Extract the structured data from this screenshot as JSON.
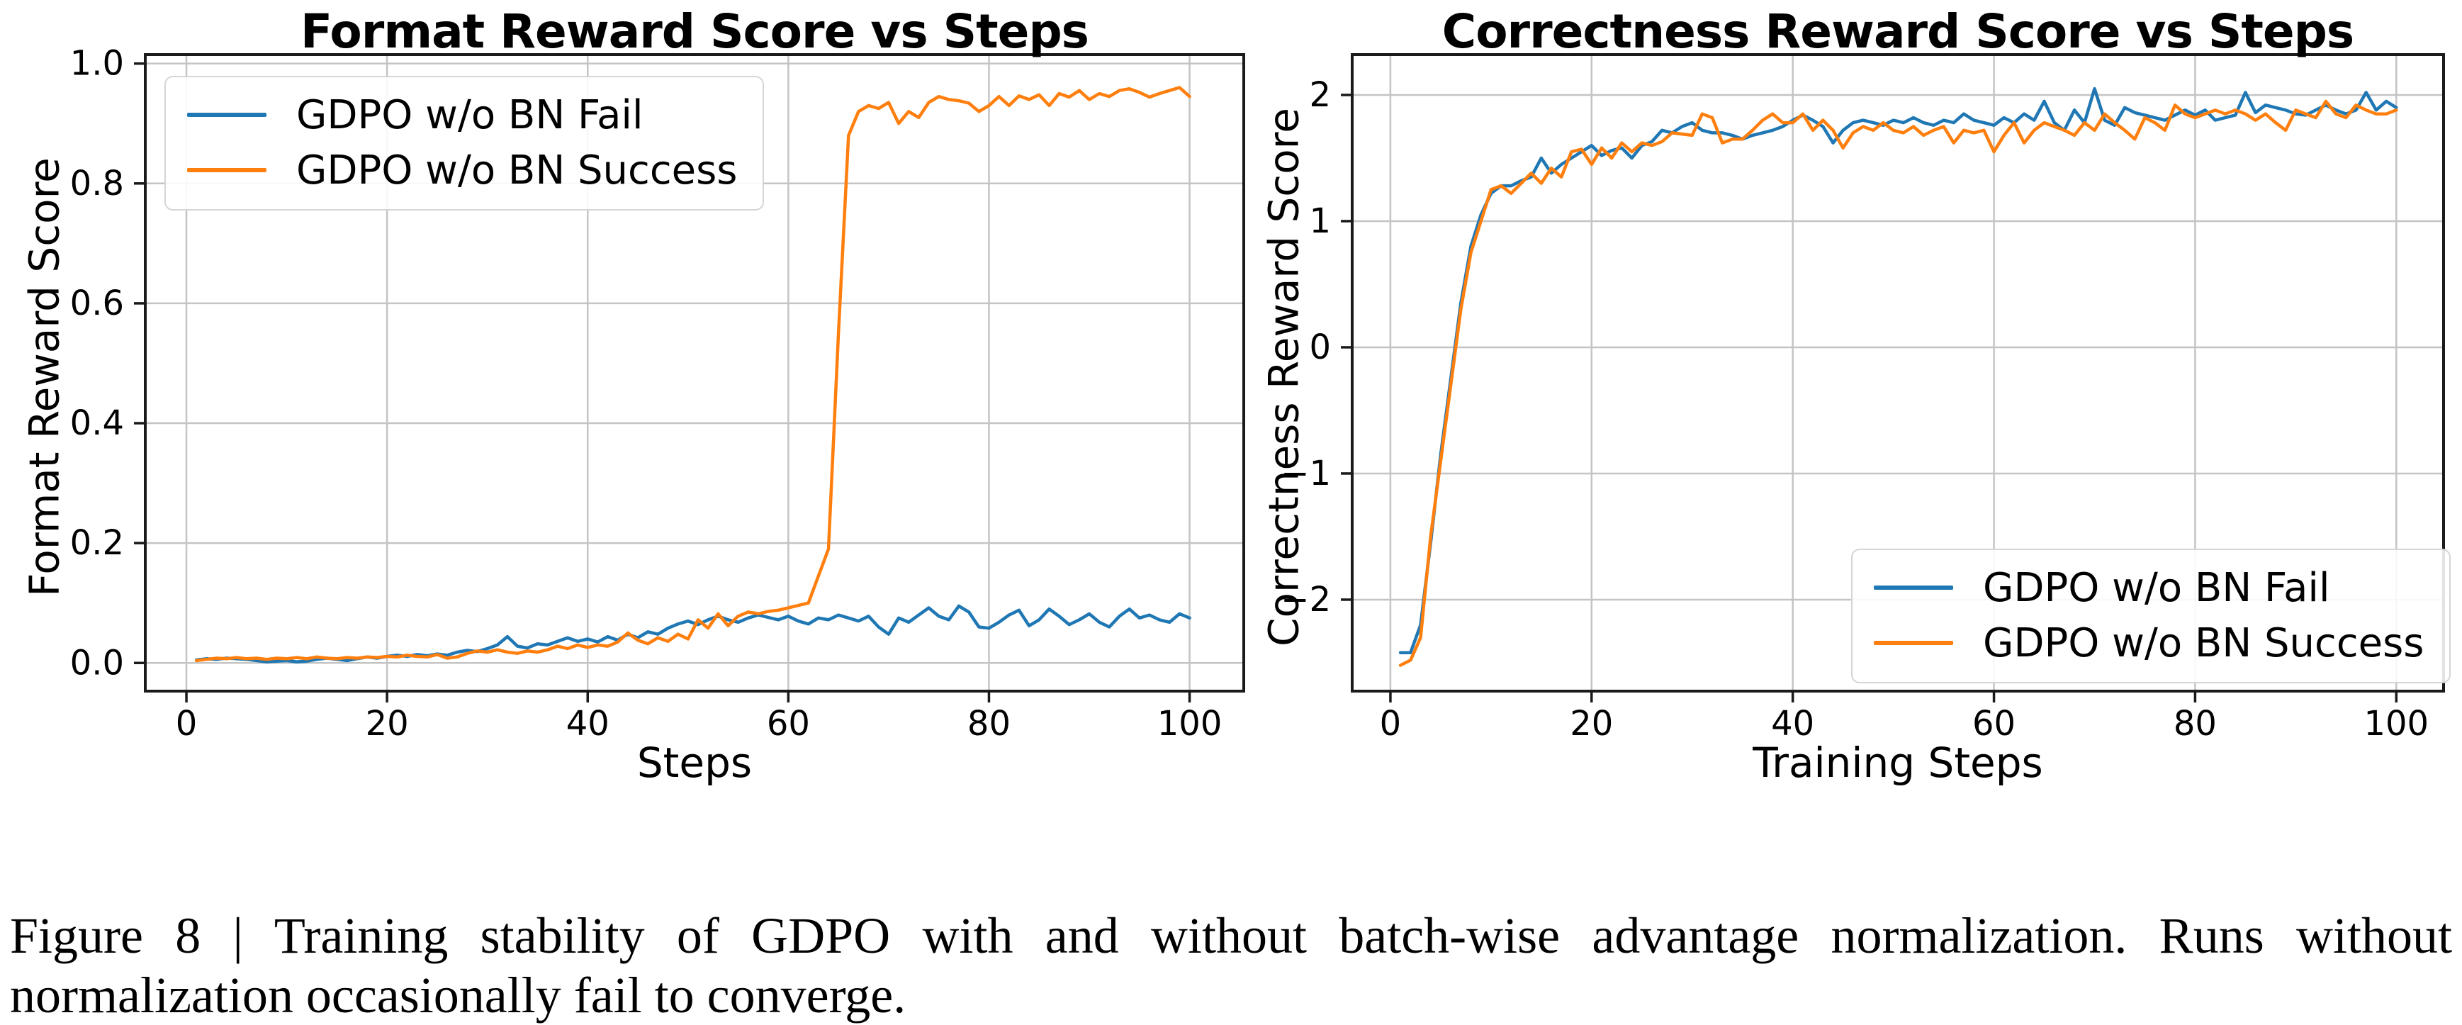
{
  "figure": {
    "caption": {
      "line1": "Figure 8 | Training stability of GDPO with and without batch-wise advantage normalization. Runs without",
      "line2": "normalization occasionally fail to converge."
    }
  },
  "chart_data": [
    {
      "type": "line",
      "title": "Format Reward Score vs Steps",
      "xlabel": "Steps",
      "ylabel": "Format Reward Score",
      "xlim": [
        -4.1,
        105.4
      ],
      "ylim": [
        -0.047,
        1.015
      ],
      "grid": true,
      "legend_position": "upper-left",
      "xticks": {
        "values": [
          0,
          20,
          40,
          60,
          80,
          100
        ],
        "labels": [
          "0",
          "20",
          "40",
          "60",
          "80",
          "100"
        ]
      },
      "yticks": {
        "values": [
          0.0,
          0.2,
          0.4,
          0.6,
          0.8,
          1.0
        ],
        "labels": [
          "0.0",
          "0.2",
          "0.4",
          "0.6",
          "0.8",
          "1.0"
        ]
      },
      "series": [
        {
          "name": "GDPO w/o BN Fail",
          "color": "#1f77b4",
          "x": {
            "start": 1,
            "step": 1
          },
          "y": [
            0.005,
            0.007,
            0.006,
            0.008,
            0.007,
            0.006,
            0.004,
            0.002,
            0.003,
            0.004,
            0.002,
            0.003,
            0.006,
            0.008,
            0.006,
            0.004,
            0.007,
            0.01,
            0.008,
            0.011,
            0.013,
            0.011,
            0.014,
            0.012,
            0.015,
            0.013,
            0.018,
            0.021,
            0.019,
            0.024,
            0.03,
            0.044,
            0.028,
            0.025,
            0.032,
            0.03,
            0.036,
            0.042,
            0.036,
            0.04,
            0.035,
            0.044,
            0.038,
            0.048,
            0.042,
            0.052,
            0.048,
            0.058,
            0.065,
            0.07,
            0.064,
            0.072,
            0.078,
            0.072,
            0.068,
            0.075,
            0.08,
            0.076,
            0.072,
            0.078,
            0.07,
            0.065,
            0.075,
            0.072,
            0.08,
            0.075,
            0.07,
            0.078,
            0.06,
            0.048,
            0.075,
            0.068,
            0.08,
            0.092,
            0.078,
            0.072,
            0.095,
            0.085,
            0.06,
            0.058,
            0.068,
            0.08,
            0.088,
            0.062,
            0.072,
            0.09,
            0.078,
            0.064,
            0.072,
            0.082,
            0.068,
            0.06,
            0.078,
            0.09,
            0.075,
            0.08,
            0.072,
            0.068,
            0.082,
            0.075
          ]
        },
        {
          "name": "GDPO w/o BN Success",
          "color": "#ff7f0e",
          "x": {
            "start": 1,
            "step": 1
          },
          "y": [
            0.004,
            0.006,
            0.008,
            0.007,
            0.009,
            0.007,
            0.008,
            0.006,
            0.008,
            0.007,
            0.009,
            0.007,
            0.01,
            0.008,
            0.007,
            0.009,
            0.008,
            0.01,
            0.009,
            0.011,
            0.01,
            0.013,
            0.011,
            0.01,
            0.014,
            0.008,
            0.01,
            0.016,
            0.02,
            0.018,
            0.022,
            0.018,
            0.016,
            0.02,
            0.018,
            0.022,
            0.028,
            0.024,
            0.03,
            0.026,
            0.03,
            0.028,
            0.035,
            0.05,
            0.038,
            0.032,
            0.042,
            0.036,
            0.048,
            0.04,
            0.072,
            0.058,
            0.082,
            0.062,
            0.078,
            0.085,
            0.082,
            0.086,
            0.088,
            0.092,
            0.096,
            0.1,
            0.145,
            0.19,
            0.55,
            0.88,
            0.92,
            0.93,
            0.925,
            0.935,
            0.9,
            0.92,
            0.91,
            0.935,
            0.945,
            0.94,
            0.938,
            0.934,
            0.92,
            0.93,
            0.945,
            0.93,
            0.946,
            0.94,
            0.948,
            0.93,
            0.95,
            0.944,
            0.955,
            0.94,
            0.95,
            0.945,
            0.955,
            0.958,
            0.952,
            0.944,
            0.95,
            0.955,
            0.96,
            0.945
          ]
        }
      ]
    },
    {
      "type": "line",
      "title": "Correctness Reward Score vs Steps",
      "xlabel": "Training Steps",
      "ylabel": "Correctness Reward Score",
      "xlim": [
        -3.8,
        104.7
      ],
      "ylim": [
        -2.725,
        2.32
      ],
      "grid": true,
      "legend_position": "lower-right",
      "xticks": {
        "values": [
          0,
          20,
          40,
          60,
          80,
          100
        ],
        "labels": [
          "0",
          "20",
          "40",
          "60",
          "80",
          "100"
        ]
      },
      "yticks": {
        "values": [
          -2,
          -1,
          0,
          1,
          2
        ],
        "labels": [
          "−2",
          "−1",
          "0",
          "1",
          "2"
        ]
      },
      "series": [
        {
          "name": "GDPO w/o BN Fail",
          "color": "#1f77b4",
          "x": {
            "start": 1,
            "step": 1
          },
          "y": [
            -2.42,
            -2.42,
            -2.2,
            -1.55,
            -0.85,
            -0.25,
            0.35,
            0.8,
            1.05,
            1.22,
            1.28,
            1.28,
            1.32,
            1.35,
            1.5,
            1.38,
            1.45,
            1.5,
            1.55,
            1.6,
            1.52,
            1.56,
            1.58,
            1.5,
            1.6,
            1.63,
            1.72,
            1.7,
            1.75,
            1.78,
            1.72,
            1.7,
            1.7,
            1.68,
            1.65,
            1.68,
            1.7,
            1.72,
            1.75,
            1.8,
            1.84,
            1.8,
            1.75,
            1.62,
            1.72,
            1.78,
            1.8,
            1.78,
            1.76,
            1.8,
            1.78,
            1.82,
            1.78,
            1.76,
            1.8,
            1.78,
            1.85,
            1.8,
            1.78,
            1.76,
            1.82,
            1.78,
            1.85,
            1.8,
            1.95,
            1.78,
            1.72,
            1.88,
            1.78,
            2.05,
            1.8,
            1.76,
            1.9,
            1.86,
            1.84,
            1.82,
            1.8,
            1.84,
            1.88,
            1.84,
            1.88,
            1.8,
            1.82,
            1.84,
            2.02,
            1.86,
            1.92,
            1.9,
            1.88,
            1.85,
            1.84,
            1.88,
            1.92,
            1.88,
            1.85,
            1.88,
            2.02,
            1.88,
            1.95,
            1.9
          ]
        },
        {
          "name": "GDPO w/o BN Success",
          "color": "#ff7f0e",
          "x": {
            "start": 1,
            "step": 1
          },
          "y": [
            -2.52,
            -2.48,
            -2.3,
            -1.5,
            -0.9,
            -0.3,
            0.3,
            0.75,
            1.0,
            1.25,
            1.28,
            1.22,
            1.3,
            1.38,
            1.3,
            1.42,
            1.35,
            1.55,
            1.57,
            1.45,
            1.58,
            1.5,
            1.62,
            1.55,
            1.62,
            1.6,
            1.63,
            1.7,
            1.69,
            1.68,
            1.85,
            1.82,
            1.62,
            1.65,
            1.65,
            1.72,
            1.8,
            1.85,
            1.78,
            1.78,
            1.85,
            1.72,
            1.8,
            1.72,
            1.58,
            1.7,
            1.75,
            1.72,
            1.78,
            1.72,
            1.7,
            1.75,
            1.68,
            1.72,
            1.75,
            1.62,
            1.72,
            1.7,
            1.72,
            1.55,
            1.68,
            1.78,
            1.62,
            1.72,
            1.78,
            1.75,
            1.72,
            1.68,
            1.78,
            1.72,
            1.85,
            1.78,
            1.72,
            1.65,
            1.82,
            1.78,
            1.72,
            1.92,
            1.85,
            1.82,
            1.85,
            1.88,
            1.85,
            1.88,
            1.85,
            1.8,
            1.85,
            1.78,
            1.72,
            1.88,
            1.85,
            1.82,
            1.95,
            1.85,
            1.82,
            1.92,
            1.88,
            1.85,
            1.85,
            1.88
          ]
        }
      ]
    }
  ]
}
